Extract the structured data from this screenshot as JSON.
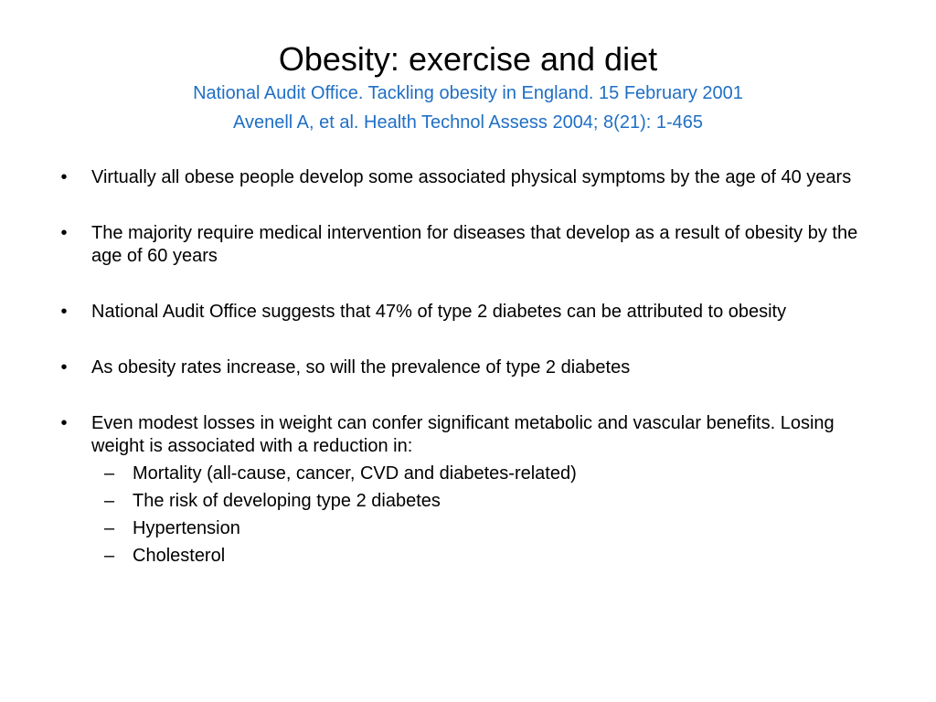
{
  "slide": {
    "title": "Obesity: exercise and diet",
    "references": [
      "National Audit Office. Tackling obesity in England. 15 February 2001",
      "Avenell A, et al. Health Technol Assess 2004; 8(21): 1-465"
    ],
    "bullet_symbol": "•",
    "sub_bullet_symbol": "–",
    "bullets": [
      "Virtually all obese people develop some associated physical symptoms by the age of 40 years",
      "The majority require medical intervention for diseases that develop as a result of obesity by the age of 60 years",
      "National Audit Office suggests that 47% of type 2 diabetes can be attributed to obesity",
      "As obesity rates increase, so will the prevalence of type 2 diabetes",
      "Even modest losses in weight can confer significant metabolic and vascular benefits. Losing weight is associated with a reduction in:"
    ],
    "sub_bullets": [
      "Mortality (all-cause, cancer, CVD and diabetes-related)",
      "The risk of developing type 2 diabetes",
      "Hypertension",
      "Cholesterol"
    ]
  },
  "colors": {
    "reference_text": "#1f6fc5",
    "body_text": "#000000",
    "background": "#ffffff"
  }
}
